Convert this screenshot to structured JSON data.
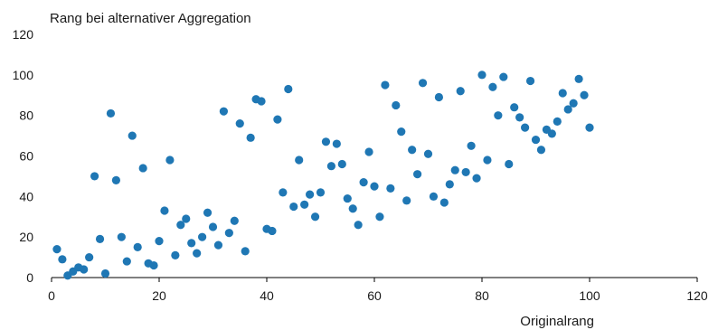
{
  "chart_data": {
    "type": "scatter",
    "title": "",
    "xlabel": "Originalrang",
    "ylabel": "Rang bei alternativer Aggregation",
    "xlim": [
      0,
      120
    ],
    "ylim": [
      0,
      120
    ],
    "xticks": [
      0,
      20,
      40,
      60,
      80,
      100,
      120
    ],
    "yticks": [
      0,
      20,
      40,
      60,
      80,
      100,
      120
    ],
    "grid": false,
    "color": "#1f77b4",
    "points": [
      [
        1,
        14
      ],
      [
        2,
        9
      ],
      [
        3,
        1
      ],
      [
        4,
        3
      ],
      [
        5,
        5
      ],
      [
        6,
        4
      ],
      [
        7,
        10
      ],
      [
        8,
        50
      ],
      [
        9,
        19
      ],
      [
        10,
        2
      ],
      [
        11,
        81
      ],
      [
        12,
        48
      ],
      [
        13,
        20
      ],
      [
        14,
        8
      ],
      [
        15,
        70
      ],
      [
        16,
        15
      ],
      [
        17,
        54
      ],
      [
        18,
        7
      ],
      [
        19,
        6
      ],
      [
        20,
        18
      ],
      [
        21,
        33
      ],
      [
        22,
        58
      ],
      [
        23,
        11
      ],
      [
        24,
        26
      ],
      [
        25,
        29
      ],
      [
        26,
        17
      ],
      [
        27,
        12
      ],
      [
        28,
        20
      ],
      [
        29,
        32
      ],
      [
        30,
        25
      ],
      [
        31,
        16
      ],
      [
        32,
        82
      ],
      [
        33,
        22
      ],
      [
        34,
        28
      ],
      [
        35,
        76
      ],
      [
        36,
        13
      ],
      [
        37,
        69
      ],
      [
        38,
        88
      ],
      [
        39,
        87
      ],
      [
        40,
        24
      ],
      [
        41,
        23
      ],
      [
        42,
        78
      ],
      [
        43,
        42
      ],
      [
        44,
        93
      ],
      [
        45,
        35
      ],
      [
        46,
        58
      ],
      [
        47,
        36
      ],
      [
        48,
        41
      ],
      [
        49,
        30
      ],
      [
        50,
        42
      ],
      [
        51,
        67
      ],
      [
        52,
        55
      ],
      [
        53,
        66
      ],
      [
        54,
        56
      ],
      [
        55,
        39
      ],
      [
        56,
        34
      ],
      [
        57,
        26
      ],
      [
        58,
        47
      ],
      [
        59,
        62
      ],
      [
        60,
        45
      ],
      [
        61,
        30
      ],
      [
        62,
        95
      ],
      [
        63,
        44
      ],
      [
        64,
        85
      ],
      [
        65,
        72
      ],
      [
        66,
        38
      ],
      [
        67,
        63
      ],
      [
        68,
        51
      ],
      [
        69,
        96
      ],
      [
        70,
        61
      ],
      [
        71,
        40
      ],
      [
        72,
        89
      ],
      [
        73,
        37
      ],
      [
        74,
        46
      ],
      [
        75,
        53
      ],
      [
        76,
        92
      ],
      [
        77,
        52
      ],
      [
        78,
        65
      ],
      [
        79,
        49
      ],
      [
        80,
        100
      ],
      [
        81,
        58
      ],
      [
        82,
        94
      ],
      [
        83,
        80
      ],
      [
        84,
        99
      ],
      [
        85,
        56
      ],
      [
        86,
        84
      ],
      [
        87,
        79
      ],
      [
        88,
        74
      ],
      [
        89,
        97
      ],
      [
        90,
        68
      ],
      [
        91,
        63
      ],
      [
        92,
        73
      ],
      [
        93,
        71
      ],
      [
        94,
        77
      ],
      [
        95,
        91
      ],
      [
        96,
        83
      ],
      [
        97,
        86
      ],
      [
        98,
        98
      ],
      [
        99,
        90
      ],
      [
        100,
        74
      ]
    ]
  }
}
